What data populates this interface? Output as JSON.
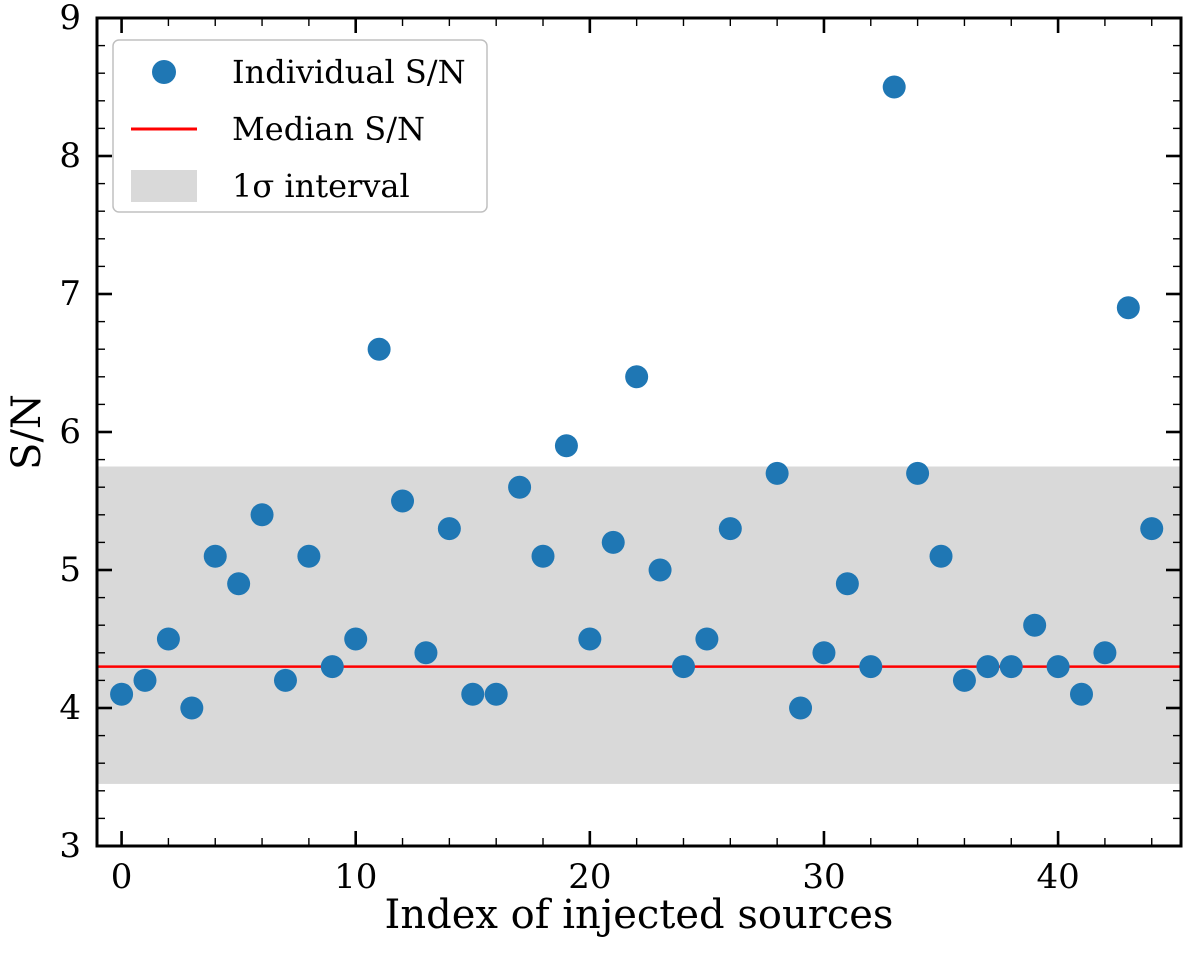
{
  "chart_data": {
    "type": "scatter",
    "title": "",
    "xlabel": "Index of injected sources",
    "ylabel": "S/N",
    "xlim": [
      -1.05,
      45.25
    ],
    "ylim": [
      3,
      9
    ],
    "x_ticks": [
      0,
      10,
      20,
      30,
      40
    ],
    "y_ticks": [
      3,
      4,
      5,
      6,
      7,
      8,
      9
    ],
    "x_minor_step": 2,
    "y_minor_step": 0.2,
    "grid": false,
    "legend_position": "upper-left",
    "points": {
      "x": [
        0,
        1,
        2,
        3,
        4,
        5,
        6,
        7,
        8,
        9,
        10,
        11,
        12,
        13,
        14,
        15,
        16,
        17,
        18,
        19,
        20,
        21,
        22,
        23,
        24,
        25,
        26,
        28,
        29,
        30,
        31,
        32,
        33,
        34,
        35,
        36,
        37,
        38,
        39,
        40,
        41,
        42,
        43,
        44
      ],
      "y": [
        4.1,
        4.2,
        4.5,
        4.0,
        5.1,
        4.9,
        5.4,
        4.2,
        5.1,
        4.3,
        4.5,
        6.6,
        5.5,
        4.4,
        5.3,
        4.1,
        4.1,
        5.6,
        5.1,
        5.9,
        4.5,
        5.2,
        6.4,
        5.0,
        4.3,
        4.5,
        5.3,
        5.7,
        4.0,
        4.4,
        4.9,
        4.3,
        8.5,
        5.7,
        5.1,
        4.2,
        4.3,
        4.3,
        4.6,
        4.3,
        4.1,
        4.4,
        6.9,
        5.3
      ]
    },
    "median_line": 4.3,
    "sigma_band": [
      3.45,
      5.75
    ],
    "legend": [
      {
        "label": "Individual S/N",
        "type": "marker"
      },
      {
        "label": "Median S/N",
        "type": "line"
      },
      {
        "label": "1σ interval",
        "type": "patch"
      }
    ],
    "colors": {
      "scatter": "#1f77b4",
      "median": "#ff0000",
      "band": "#d9d9d9",
      "legend_edge": "#c0c0c0",
      "axis": "#000000"
    }
  }
}
